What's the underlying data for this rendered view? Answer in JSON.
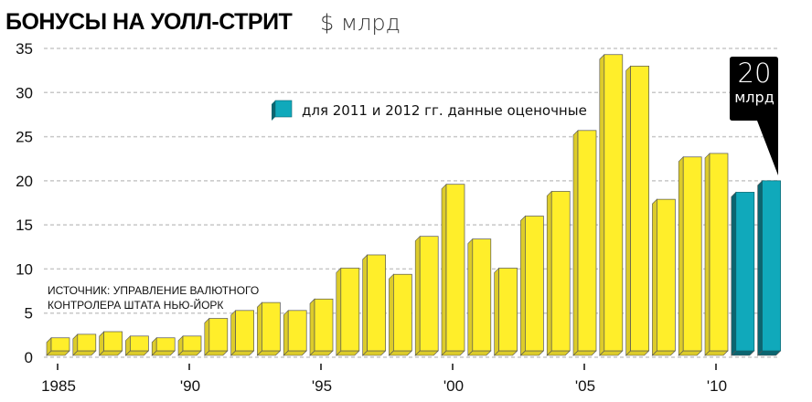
{
  "chart_data": {
    "type": "bar",
    "title": "БОНУСЫ НА УОЛЛ-СТРИТ",
    "unit": "$ млрд",
    "xlabel": "",
    "ylabel": "",
    "ylim": [
      0,
      35
    ],
    "yticks": [
      "0",
      "5",
      "10",
      "15",
      "20",
      "25",
      "30",
      "35"
    ],
    "grid": true,
    "categories": [
      1985,
      1986,
      1987,
      1988,
      1989,
      1990,
      1991,
      1992,
      1993,
      1994,
      1995,
      1996,
      1997,
      1998,
      1999,
      2000,
      2001,
      2002,
      2003,
      2004,
      2005,
      2006,
      2007,
      2008,
      2009,
      2010,
      2011,
      2012
    ],
    "xtick_labels": [
      {
        "year": 1985,
        "label": "1985"
      },
      {
        "year": 1990,
        "label": "'90"
      },
      {
        "year": 1995,
        "label": "'95"
      },
      {
        "year": 2000,
        "label": "'00"
      },
      {
        "year": 2005,
        "label": "'05"
      },
      {
        "year": 2010,
        "label": "'10"
      }
    ],
    "values": [
      2.2,
      2.6,
      2.9,
      2.4,
      2.2,
      2.4,
      4.4,
      5.3,
      6.2,
      5.3,
      6.6,
      10.1,
      11.6,
      9.4,
      13.7,
      19.6,
      13.4,
      10.1,
      16.0,
      18.8,
      25.7,
      34.3,
      33.0,
      17.9,
      22.7,
      23.1,
      18.7,
      20.0
    ],
    "estimated_from_year": 2011,
    "colors": {
      "actual": "#ffee2a",
      "estimated": "#10a9bb"
    },
    "legend": {
      "label": "для 2011 и 2012 гг. данные оценочные",
      "placement": "top-center"
    },
    "source": [
      "ИСТОЧНИК: УПРАВЛЕНИЕ ВАЛЮТНОГО",
      "КОНТРОЛЕРА ШТАТА НЬЮ-ЙОРК"
    ],
    "callout": {
      "value": "20",
      "unit": "млрд",
      "year": 2012
    }
  }
}
